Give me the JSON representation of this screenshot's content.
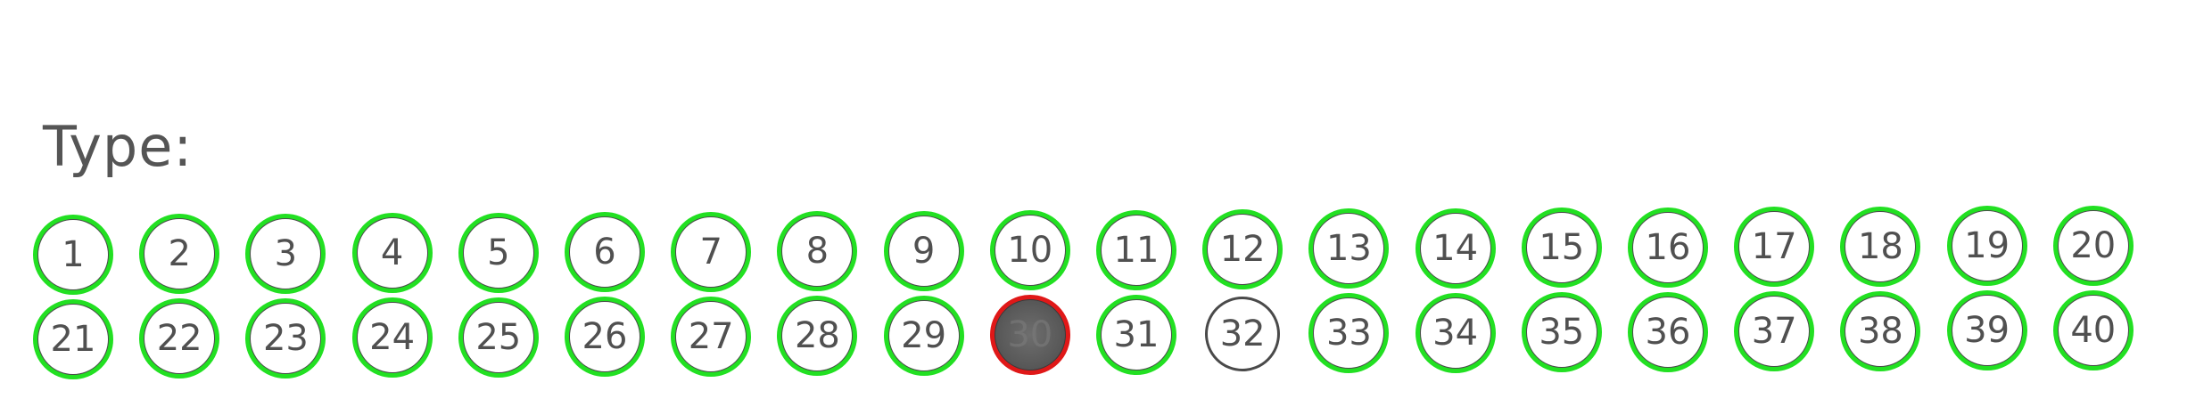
{
  "header": {
    "label": "Type:"
  },
  "bubbles": [
    {
      "n": "1",
      "mark": "green"
    },
    {
      "n": "2",
      "mark": "green"
    },
    {
      "n": "3",
      "mark": "green"
    },
    {
      "n": "4",
      "mark": "green"
    },
    {
      "n": "5",
      "mark": "green"
    },
    {
      "n": "6",
      "mark": "green"
    },
    {
      "n": "7",
      "mark": "green"
    },
    {
      "n": "8",
      "mark": "green"
    },
    {
      "n": "9",
      "mark": "green"
    },
    {
      "n": "10",
      "mark": "green"
    },
    {
      "n": "11",
      "mark": "green"
    },
    {
      "n": "12",
      "mark": "green"
    },
    {
      "n": "13",
      "mark": "green"
    },
    {
      "n": "14",
      "mark": "green"
    },
    {
      "n": "15",
      "mark": "green"
    },
    {
      "n": "16",
      "mark": "green"
    },
    {
      "n": "17",
      "mark": "green"
    },
    {
      "n": "18",
      "mark": "green"
    },
    {
      "n": "19",
      "mark": "green"
    },
    {
      "n": "20",
      "mark": "green"
    },
    {
      "n": "21",
      "mark": "green"
    },
    {
      "n": "22",
      "mark": "green"
    },
    {
      "n": "23",
      "mark": "green"
    },
    {
      "n": "24",
      "mark": "green"
    },
    {
      "n": "25",
      "mark": "green"
    },
    {
      "n": "26",
      "mark": "green"
    },
    {
      "n": "27",
      "mark": "green"
    },
    {
      "n": "28",
      "mark": "green"
    },
    {
      "n": "29",
      "mark": "green"
    },
    {
      "n": "30",
      "mark": "red",
      "filled": true
    },
    {
      "n": "31",
      "mark": "green"
    },
    {
      "n": "32",
      "mark": "none"
    },
    {
      "n": "33",
      "mark": "green"
    },
    {
      "n": "34",
      "mark": "green"
    },
    {
      "n": "35",
      "mark": "green"
    },
    {
      "n": "36",
      "mark": "green"
    },
    {
      "n": "37",
      "mark": "green"
    },
    {
      "n": "38",
      "mark": "green"
    },
    {
      "n": "39",
      "mark": "green"
    },
    {
      "n": "40",
      "mark": "green"
    }
  ],
  "colors": {
    "ok_ring": "#22e022",
    "error_ring": "#e01818",
    "ink": "#4a4a4a"
  }
}
